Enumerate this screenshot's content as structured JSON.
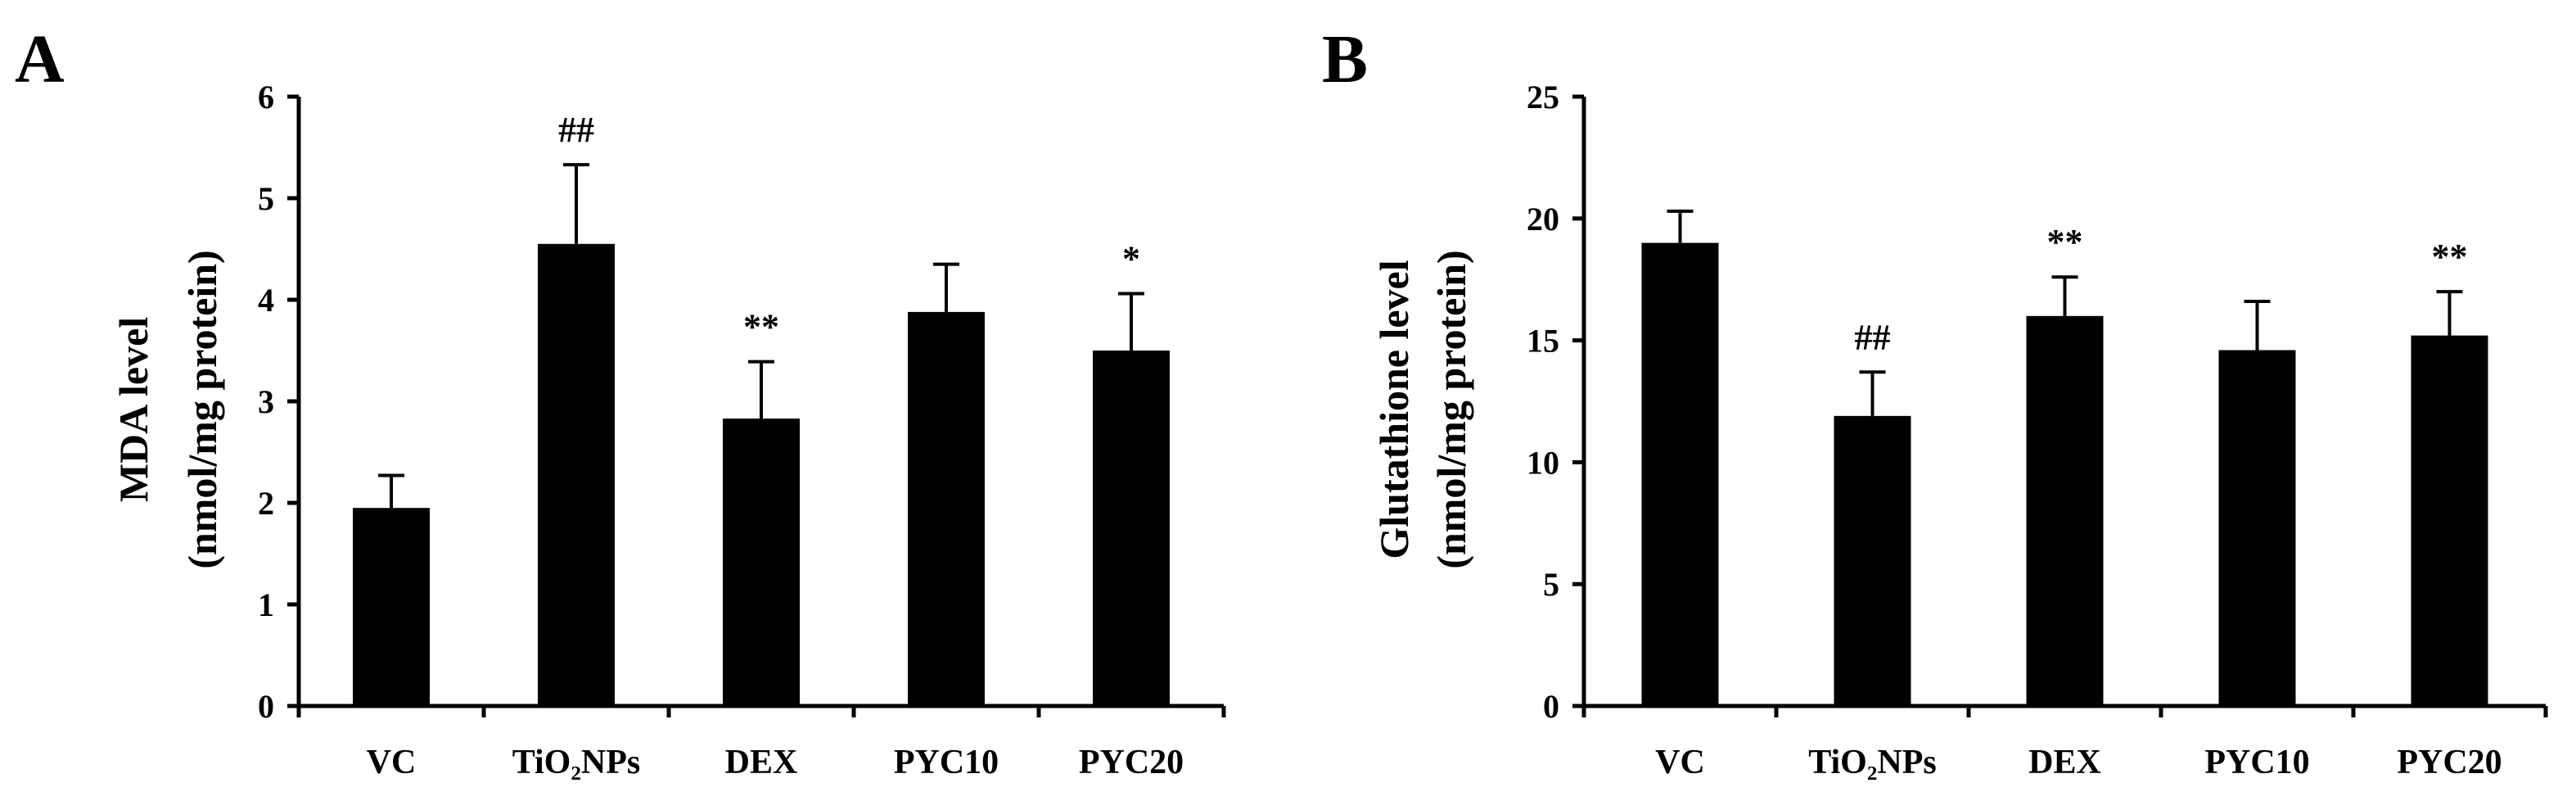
{
  "chart_data": [
    {
      "type": "bar",
      "panel": "A",
      "categories": [
        "VC",
        "TiO₂NPs",
        "DEX",
        "PYC10",
        "PYC20"
      ],
      "values": [
        1.95,
        4.55,
        2.83,
        3.88,
        3.5
      ],
      "errors": [
        0.32,
        0.78,
        0.56,
        0.47,
        0.56
      ],
      "significance": [
        "",
        "##",
        "**",
        "",
        "*"
      ],
      "ylabel_line1": "MDA level",
      "ylabel_line2": "(nmol/mg protein)",
      "ylim": [
        0,
        6
      ],
      "yticks": [
        0,
        1,
        2,
        3,
        4,
        5,
        6
      ],
      "bar_color": "#000000",
      "grid": false
    },
    {
      "type": "bar",
      "panel": "B",
      "categories": [
        "VC",
        "TiO₂NPs",
        "DEX",
        "PYC10",
        "PYC20"
      ],
      "values": [
        19.0,
        11.9,
        16.0,
        14.6,
        15.2
      ],
      "errors": [
        1.3,
        1.8,
        1.6,
        2.0,
        1.8
      ],
      "significance": [
        "",
        "##",
        "**",
        "",
        "**"
      ],
      "ylabel_line1": "Glutathione level",
      "ylabel_line2": "(nmol/mg protein)",
      "ylim": [
        0,
        25
      ],
      "yticks": [
        0,
        5,
        10,
        15,
        20,
        25
      ],
      "bar_color": "#000000",
      "grid": false
    }
  ]
}
